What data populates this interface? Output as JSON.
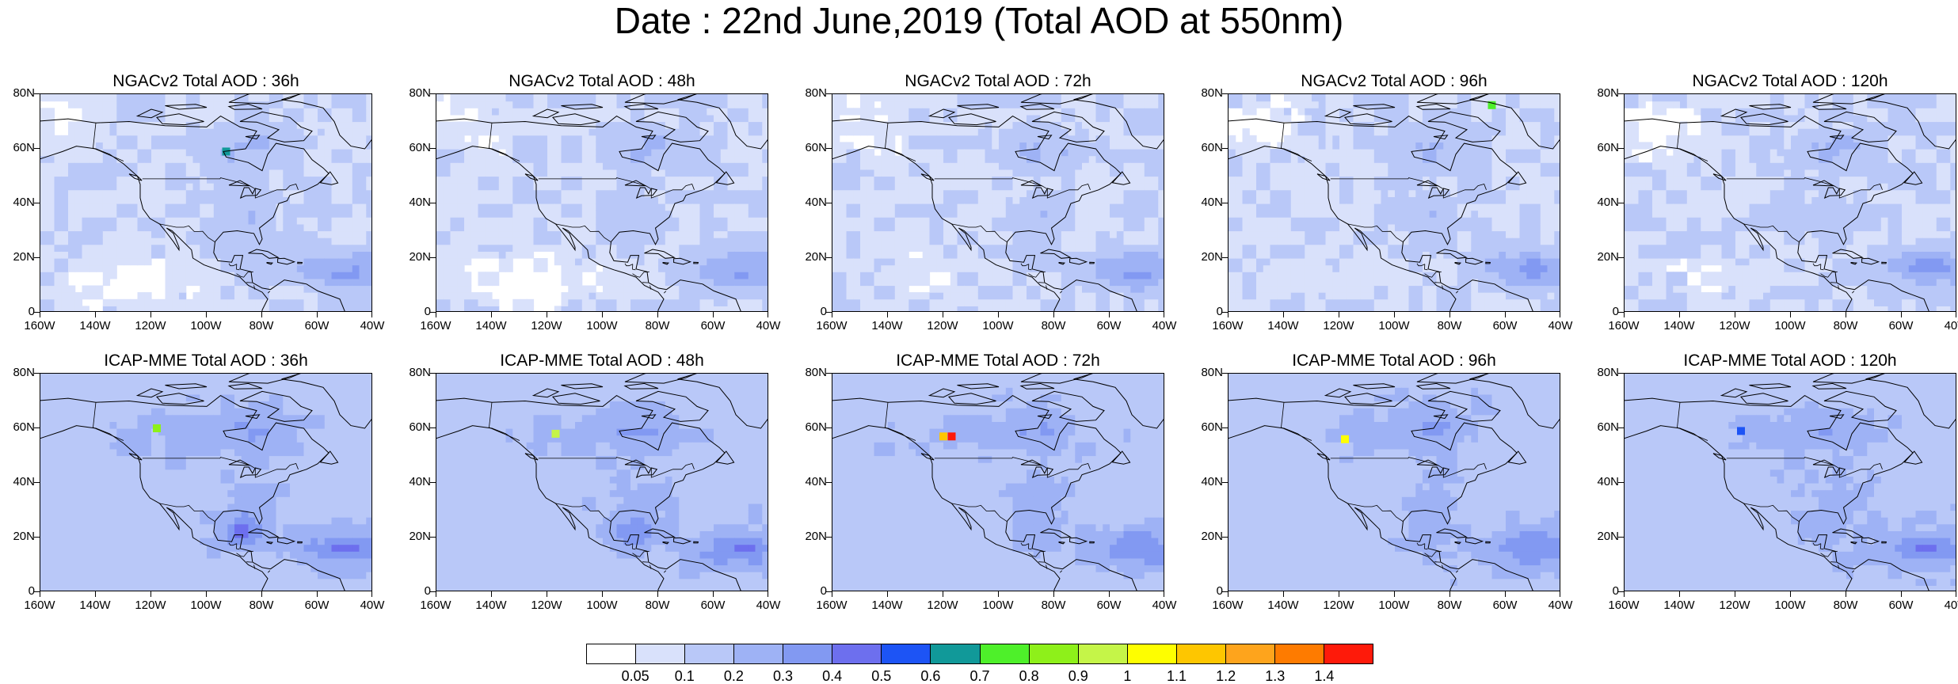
{
  "title": "Date : 22nd June,2019 (Total AOD at 550nm)",
  "colors": {
    "levels": [
      "#ffffff",
      "#d9e1fb",
      "#b9c8f8",
      "#9eb2f5",
      "#8299f2",
      "#6d6fee",
      "#1d54f5",
      "#119999",
      "#4ef02a",
      "#8ef01a",
      "#c5f548",
      "#fefe00",
      "#fec600",
      "#fea41c",
      "#fe7b00",
      "#fe1a0a"
    ],
    "coastline": "#000000"
  },
  "colorbar": {
    "labels": [
      "0.05",
      "0.1",
      "0.2",
      "0.3",
      "0.4",
      "0.5",
      "0.6",
      "0.7",
      "0.8",
      "0.9",
      "1",
      "1.1",
      "1.2",
      "1.3",
      "1.4"
    ]
  },
  "axes": {
    "lat_labels": [
      "80N",
      "60N",
      "40N",
      "20N",
      "0"
    ],
    "lon_labels": [
      "160W",
      "140W",
      "120W",
      "100W",
      "80W",
      "60W",
      "40W"
    ],
    "lat_range": [
      0,
      80
    ],
    "lon_range": [
      -160,
      -40
    ]
  },
  "panels": [
    {
      "title": "NGACv2 Total AOD : 36h",
      "model": "NGACv2",
      "hour": 36,
      "hotspots": [
        {
          "lon": -93,
          "lat": 59,
          "level": 7
        }
      ]
    },
    {
      "title": "NGACv2 Total AOD : 48h",
      "model": "NGACv2",
      "hour": 48,
      "hotspots": []
    },
    {
      "title": "NGACv2 Total AOD : 72h",
      "model": "NGACv2",
      "hour": 72,
      "hotspots": []
    },
    {
      "title": "NGACv2 Total AOD : 96h",
      "model": "NGACv2",
      "hour": 96,
      "hotspots": [
        {
          "lon": -65,
          "lat": 76,
          "level": 8
        }
      ]
    },
    {
      "title": "NGACv2 Total AOD : 120h",
      "model": "NGACv2",
      "hour": 120,
      "hotspots": []
    },
    {
      "title": "ICAP-MME Total AOD : 36h",
      "model": "ICAP-MME",
      "hour": 36,
      "hotspots": [
        {
          "lon": -118,
          "lat": 60,
          "level": 9
        }
      ]
    },
    {
      "title": "ICAP-MME Total AOD : 48h",
      "model": "ICAP-MME",
      "hour": 48,
      "hotspots": [
        {
          "lon": -117,
          "lat": 58,
          "level": 10
        }
      ]
    },
    {
      "title": "ICAP-MME Total AOD : 72h",
      "model": "ICAP-MME",
      "hour": 72,
      "hotspots": [
        {
          "lon": -117,
          "lat": 57,
          "level": 15
        },
        {
          "lon": -120,
          "lat": 57,
          "level": 12
        }
      ]
    },
    {
      "title": "ICAP-MME Total AOD : 96h",
      "model": "ICAP-MME",
      "hour": 96,
      "hotspots": [
        {
          "lon": -118,
          "lat": 56,
          "level": 11
        }
      ]
    },
    {
      "title": "ICAP-MME Total AOD : 120h",
      "model": "ICAP-MME",
      "hour": 120,
      "hotspots": [
        {
          "lon": -118,
          "lat": 59,
          "level": 6
        }
      ]
    }
  ]
}
